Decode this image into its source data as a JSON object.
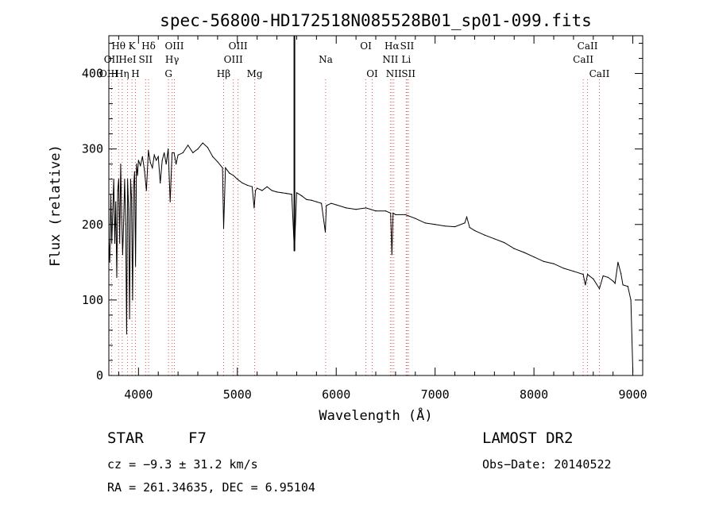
{
  "chart_data": {
    "type": "line",
    "title": "spec-56800-HD172518N085528B01_sp01-099.fits",
    "xlabel": "Wavelength (Å)",
    "ylabel": "Flux (relative)",
    "xlim": [
      3700,
      9100
    ],
    "ylim": [
      0,
      450
    ],
    "x_ticks": [
      4000,
      5000,
      6000,
      7000,
      8000,
      9000
    ],
    "y_ticks": [
      0,
      100,
      200,
      300,
      400
    ],
    "x_tick_labels": [
      "4000",
      "5000",
      "6000",
      "7000",
      "8000",
      "9000"
    ],
    "y_tick_labels": [
      "0",
      "100",
      "200",
      "300",
      "400"
    ],
    "grid": false,
    "series": [
      {
        "x": [
          3700,
          3710,
          3720,
          3730,
          3740,
          3750,
          3760,
          3770,
          3780,
          3790,
          3800,
          3810,
          3820,
          3830,
          3840,
          3850,
          3860,
          3870,
          3880,
          3890,
          3900,
          3910,
          3920,
          3930,
          3940,
          3950,
          3960,
          3970,
          3980,
          3990,
          4000,
          4020,
          4040,
          4060,
          4080,
          4100,
          4120,
          4140,
          4160,
          4180,
          4200,
          4220,
          4240,
          4260,
          4280,
          4300,
          4320,
          4340,
          4360,
          4380,
          4400,
          4450,
          4500,
          4550,
          4600,
          4650,
          4700,
          4750,
          4800,
          4850,
          4861,
          4880,
          4920,
          4960,
          5000,
          5050,
          5100,
          5150,
          5170,
          5183,
          5200,
          5250,
          5300,
          5350,
          5400,
          5450,
          5500,
          5550,
          5577,
          5600,
          5650,
          5700,
          5750,
          5800,
          5850,
          5890,
          5900,
          5950,
          6000,
          6100,
          6200,
          6300,
          6400,
          6500,
          6550,
          6563,
          6575,
          6600,
          6700,
          6800,
          6900,
          7000,
          7100,
          7200,
          7300,
          7320,
          7350,
          7400,
          7500,
          7600,
          7700,
          7800,
          7900,
          8000,
          8100,
          8200,
          8300,
          8400,
          8498,
          8520,
          8542,
          8560,
          8600,
          8662,
          8700,
          8750,
          8800,
          8820,
          8850,
          8880,
          8900,
          8950,
          8980,
          9000
        ],
        "values": [
          180,
          150,
          240,
          175,
          220,
          260,
          175,
          230,
          130,
          245,
          260,
          175,
          280,
          210,
          160,
          205,
          260,
          200,
          55,
          260,
          220,
          75,
          260,
          235,
          100,
          250,
          270,
          145,
          280,
          265,
          285,
          278,
          290,
          272,
          245,
          298,
          282,
          275,
          292,
          285,
          290,
          255,
          285,
          295,
          280,
          300,
          230,
          295,
          295,
          280,
          292,
          295,
          305,
          295,
          300,
          308,
          302,
          290,
          283,
          275,
          195,
          275,
          268,
          265,
          260,
          255,
          252,
          250,
          222,
          245,
          248,
          245,
          250,
          245,
          243,
          242,
          241,
          240,
          165,
          242,
          238,
          233,
          232,
          230,
          228,
          190,
          225,
          228,
          226,
          222,
          220,
          222,
          218,
          218,
          215,
          160,
          215,
          213,
          213,
          208,
          202,
          200,
          198,
          197,
          202,
          210,
          196,
          192,
          186,
          181,
          176,
          168,
          163,
          157,
          151,
          148,
          142,
          138,
          134,
          120,
          134,
          132,
          128,
          115,
          132,
          130,
          125,
          122,
          150,
          135,
          120,
          118,
          100,
          5
        ]
      }
    ],
    "line_markers": [
      {
        "label": "Hθ",
        "x": 3798,
        "row": 1
      },
      {
        "label": "K",
        "x": 3934,
        "row": 1
      },
      {
        "label": "Hδ",
        "x": 4102,
        "row": 1
      },
      {
        "label": "OIII",
        "x": 4363,
        "row": 1
      },
      {
        "label": "OIII",
        "x": 5007,
        "row": 1
      },
      {
        "label": "OI",
        "x": 6300,
        "row": 1
      },
      {
        "label": "Hα",
        "x": 6563,
        "row": 1
      },
      {
        "label": "SII",
        "x": 6717,
        "row": 1
      },
      {
        "label": "CaII",
        "x": 8542,
        "row": 1
      },
      {
        "label": "OII",
        "x": 3727,
        "row": 2
      },
      {
        "label": "HeI",
        "x": 3889,
        "row": 2
      },
      {
        "label": "SII",
        "x": 4072,
        "row": 2
      },
      {
        "label": "Hγ",
        "x": 4340,
        "row": 2
      },
      {
        "label": "OIII",
        "x": 4959,
        "row": 2
      },
      {
        "label": "Na",
        "x": 5893,
        "row": 2
      },
      {
        "label": "NII",
        "x": 6548,
        "row": 2
      },
      {
        "label": "Li",
        "x": 6708,
        "row": 2
      },
      {
        "label": "CaII",
        "x": 8498,
        "row": 2
      },
      {
        "label": "OIII",
        "x": 3700,
        "row": 3
      },
      {
        "label": "Hη",
        "x": 3835,
        "row": 3
      },
      {
        "label": "H",
        "x": 3969,
        "row": 3
      },
      {
        "label": "G",
        "x": 4304,
        "row": 3
      },
      {
        "label": "Hβ",
        "x": 4861,
        "row": 3
      },
      {
        "label": "Mg",
        "x": 5175,
        "row": 3
      },
      {
        "label": "OI",
        "x": 6364,
        "row": 3
      },
      {
        "label": "NII",
        "x": 6583,
        "row": 3
      },
      {
        "label": "SII",
        "x": 6731,
        "row": 3
      },
      {
        "label": "CaII",
        "x": 8662,
        "row": 3
      }
    ],
    "sky_line_x": 5577
  },
  "info": {
    "object_class": "STAR",
    "subclass": "F7",
    "survey": "LAMOST DR2",
    "cz": "cz = −9.3 ± 31.2 km/s",
    "obs_date": "Obs−Date: 20140522",
    "coords": "RA = 261.34635, DEC =   6.95104"
  }
}
